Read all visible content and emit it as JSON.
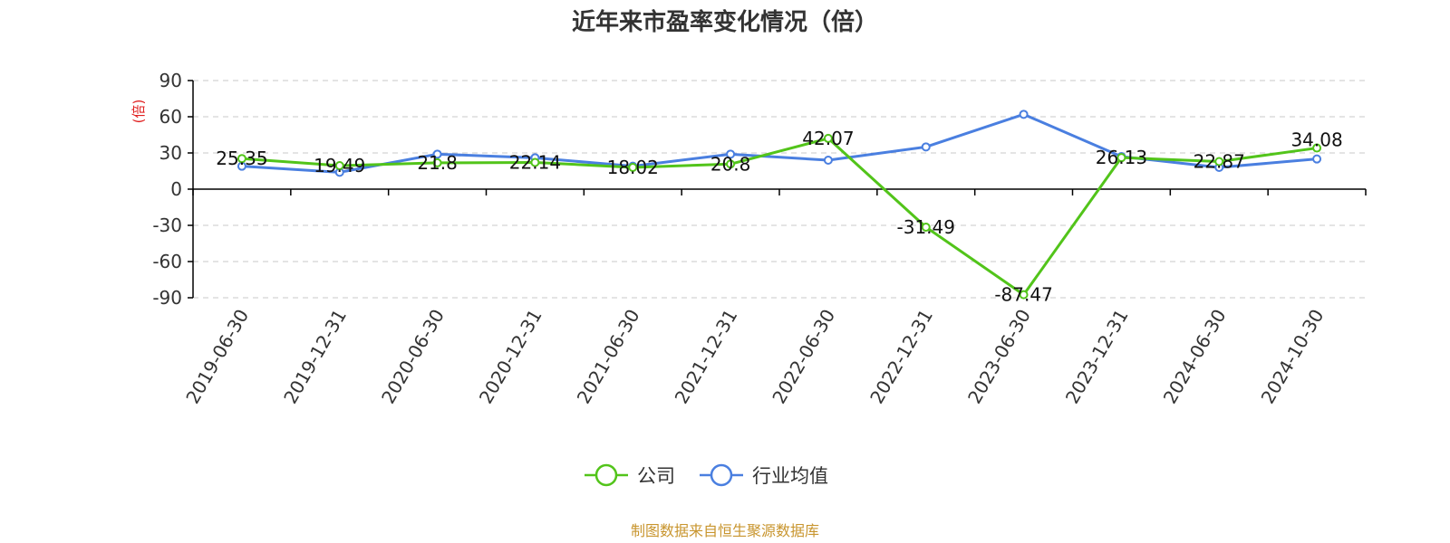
{
  "title": "近年来市盈率变化情况（倍）",
  "unit_label": "(倍)",
  "source": "制图数据来自恒生聚源数据库",
  "colors": {
    "company": "#52c41a",
    "industry": "#4a7fe0"
  },
  "chart_data": {
    "type": "line",
    "title": "近年来市盈率变化情况（倍）",
    "ylabel": "(倍)",
    "ylim": [
      -90,
      90
    ],
    "yticks": [
      90,
      60,
      30,
      0,
      -30,
      -60,
      -90
    ],
    "grid": true,
    "legend_position": "bottom",
    "categories": [
      "2019-06-30",
      "2019-12-31",
      "2020-06-30",
      "2020-12-31",
      "2021-06-30",
      "2021-12-31",
      "2022-06-30",
      "2022-12-31",
      "2023-06-30",
      "2023-12-31",
      "2024-06-30",
      "2024-10-30"
    ],
    "series": [
      {
        "name": "公司",
        "color": "#52c41a",
        "values": [
          25.35,
          19.49,
          21.8,
          22.14,
          18.02,
          20.8,
          42.07,
          -31.49,
          -87.47,
          26.13,
          22.87,
          34.08
        ],
        "labels": [
          "25.35",
          "19.49",
          "21.8",
          "22.14",
          "18.02",
          "20.8",
          "42.07",
          "-31.49",
          "-87.47",
          "26.13",
          "22.87",
          "34.08"
        ]
      },
      {
        "name": "行业均值",
        "color": "#4a7fe0",
        "values": [
          19,
          14,
          29,
          26,
          19,
          29,
          24,
          35,
          62,
          27,
          18,
          25
        ]
      }
    ]
  }
}
